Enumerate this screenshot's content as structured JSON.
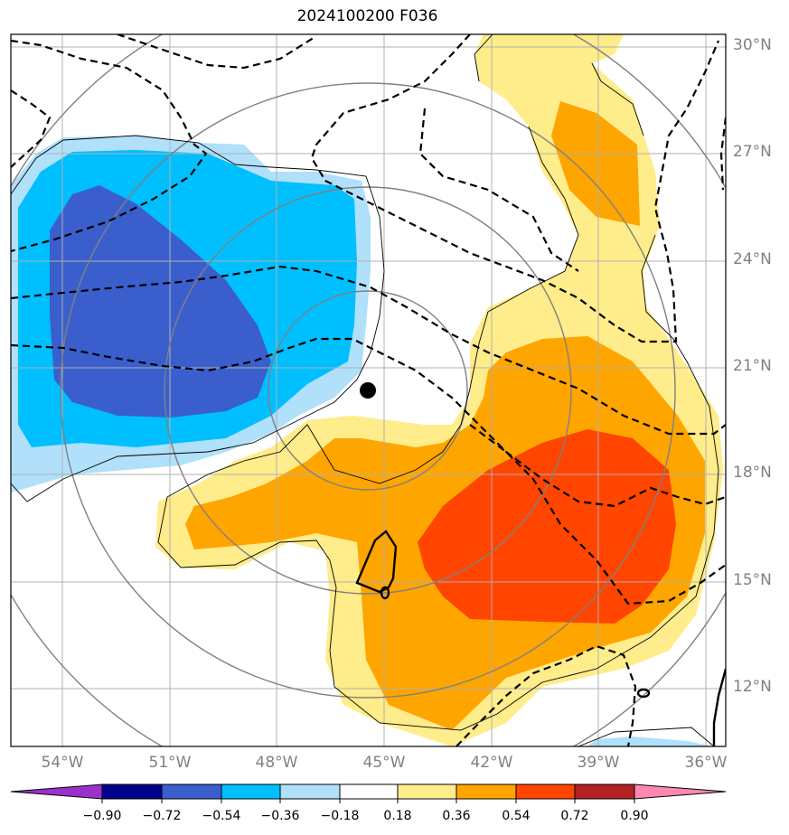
{
  "title": "2024100200 F036",
  "lat_labels": [
    "30°N",
    "27°N",
    "24°N",
    "21°N",
    "18°N",
    "15°N",
    "12°N"
  ],
  "lon_labels": [
    "54°W",
    "51°W",
    "48°W",
    "45°W",
    "42°W",
    "39°W",
    "36°W"
  ],
  "colorbar": {
    "labels": [
      "−0.90",
      "−0.72",
      "−0.54",
      "−0.36",
      "−0.18",
      "0.18",
      "0.36",
      "0.54",
      "0.72",
      "0.90"
    ],
    "colors": [
      "#9932cc",
      "#00008b",
      "#3a5fcd",
      "#00bfff",
      "#b0e0fa",
      "#ffffff",
      "#ffec8b",
      "#ffa500",
      "#ff4500",
      "#b22222",
      "#ff88b0"
    ]
  },
  "map_colors": {
    "dark_blue": "#3a5fcd",
    "mid_blue": "#00bfff",
    "light_blue": "#b0e0fa",
    "light_yellow": "#ffec8b",
    "orange": "#ffa500",
    "red_orange": "#ff4500",
    "gridline": "#b0b0b0",
    "range_ring": "#808080"
  },
  "center_marker": {
    "lat": 20.4,
    "lon": -45.4
  }
}
